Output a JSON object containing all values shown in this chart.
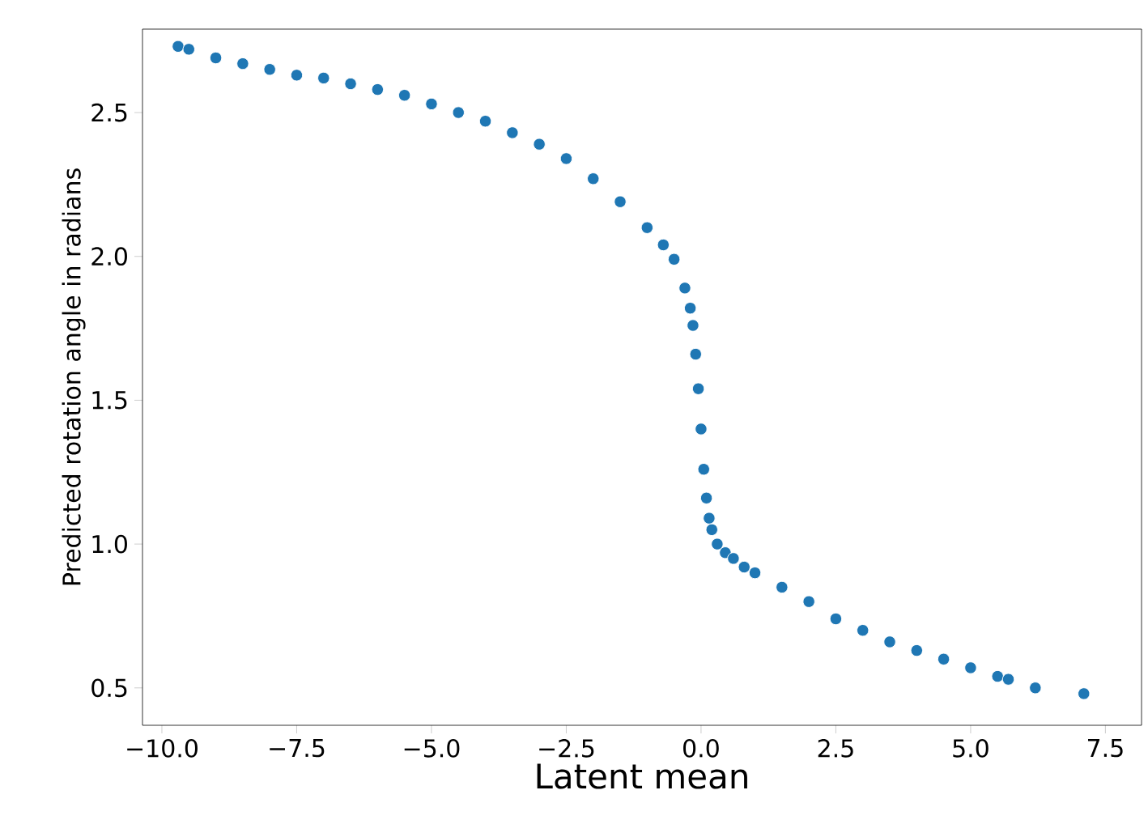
{
  "chart_data": {
    "type": "scatter",
    "xlabel": "Latent mean",
    "ylabel": "Predicted rotation angle in radians",
    "x": [
      -9.7,
      -9.5,
      -9.0,
      -8.5,
      -8.0,
      -7.5,
      -7.0,
      -6.5,
      -6.0,
      -5.5,
      -5.0,
      -4.5,
      -4.0,
      -3.5,
      -3.0,
      -2.5,
      -2.0,
      -1.5,
      -1.0,
      -0.7,
      -0.5,
      -0.3,
      -0.2,
      -0.15,
      -0.1,
      -0.05,
      0.0,
      0.05,
      0.1,
      0.15,
      0.2,
      0.3,
      0.45,
      0.6,
      0.8,
      1.0,
      1.5,
      2.0,
      2.5,
      3.0,
      3.5,
      4.0,
      4.5,
      5.0,
      5.5,
      5.7,
      6.2,
      7.1
    ],
    "series": [
      {
        "color": "#1f77b4",
        "values": [
          2.73,
          2.72,
          2.69,
          2.67,
          2.65,
          2.63,
          2.62,
          2.6,
          2.58,
          2.56,
          2.53,
          2.5,
          2.47,
          2.43,
          2.39,
          2.34,
          2.27,
          2.19,
          2.1,
          2.04,
          1.99,
          1.89,
          1.82,
          1.76,
          1.66,
          1.54,
          1.4,
          1.26,
          1.16,
          1.09,
          1.05,
          1.0,
          0.97,
          0.95,
          0.92,
          0.9,
          0.85,
          0.8,
          0.74,
          0.7,
          0.66,
          0.63,
          0.6,
          0.57,
          0.54,
          0.53,
          0.5,
          0.48
        ]
      }
    ],
    "xlim": [
      -10.36,
      8.17
    ],
    "ylim": [
      0.37,
      2.79
    ],
    "xticks": [
      {
        "value": -10,
        "label": "−10.0"
      },
      {
        "value": -7.5,
        "label": "−7.5"
      },
      {
        "value": -5,
        "label": "−5.0"
      },
      {
        "value": -2.5,
        "label": "−2.5"
      },
      {
        "value": 0,
        "label": "0.0"
      },
      {
        "value": 2.5,
        "label": "2.5"
      },
      {
        "value": 5,
        "label": "5.0"
      },
      {
        "value": 7.5,
        "label": "7.5"
      }
    ],
    "yticks": [
      0.5,
      {
        "value": 1,
        "label": "1.0"
      },
      1.5,
      {
        "value": 2,
        "label": "2.0"
      },
      2.5
    ],
    "marker": "circle",
    "grid": false
  }
}
